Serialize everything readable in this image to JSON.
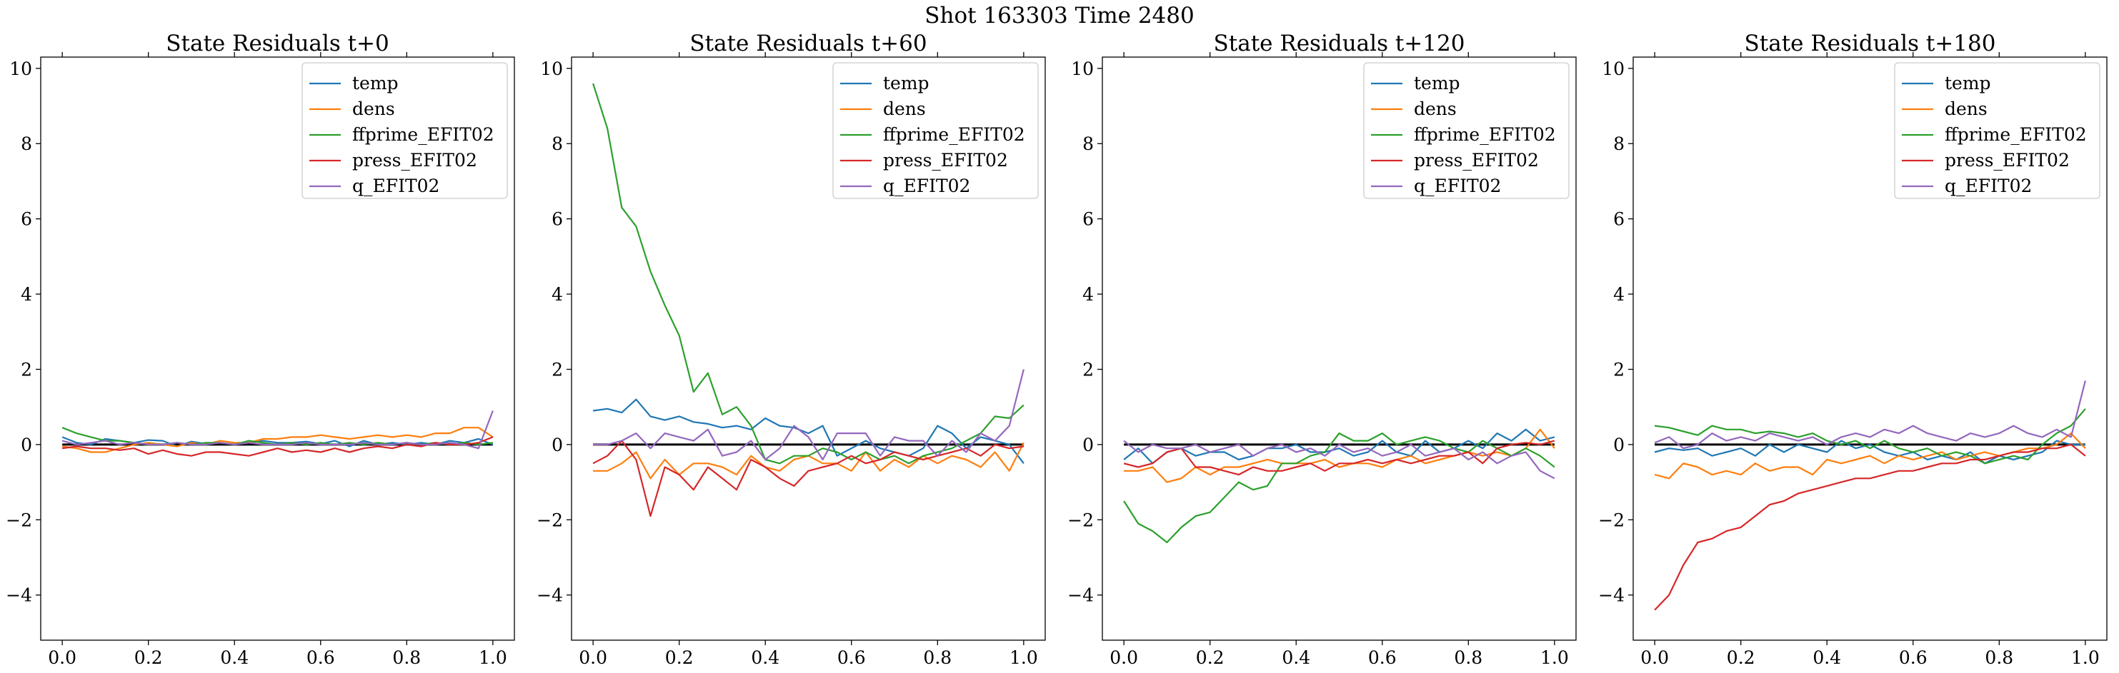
{
  "suptitle": "Shot 163303   Time 2480",
  "colors": {
    "temp": "#1f77b4",
    "dens": "#ff7f0e",
    "ffprime_EFIT02": "#2ca02c",
    "press_EFIT02": "#d62728",
    "q_EFIT02": "#9467bd",
    "zero_line": "#000000"
  },
  "chart_data": [
    {
      "type": "line",
      "title": "State Residuals t+0",
      "xlim": [
        -0.05,
        1.05
      ],
      "ylim": [
        -5.2,
        10.3
      ],
      "xticks": [
        0.0,
        0.2,
        0.4,
        0.6,
        0.8,
        1.0
      ],
      "xtick_labels": [
        "0.0",
        "0.2",
        "0.4",
        "0.6",
        "0.8",
        "1.0"
      ],
      "yticks": [
        -4,
        -2,
        0,
        2,
        4,
        6,
        8,
        10
      ],
      "ytick_labels": [
        "−4",
        "−2",
        "0",
        "2",
        "4",
        "6",
        "8",
        "10"
      ],
      "legend_position": "top-right",
      "grid": false,
      "x": [
        0.0,
        0.0333,
        0.0667,
        0.1,
        0.1333,
        0.1667,
        0.2,
        0.2333,
        0.2667,
        0.3,
        0.3333,
        0.3667,
        0.4,
        0.4333,
        0.4667,
        0.5,
        0.5333,
        0.5667,
        0.6,
        0.6333,
        0.6667,
        0.7,
        0.7333,
        0.7667,
        0.8,
        0.8333,
        0.8667,
        0.9,
        0.9333,
        0.9667,
        1.0
      ],
      "series": [
        {
          "name": "temp",
          "values": [
            0.2,
            0.05,
            0.0,
            0.15,
            0.1,
            0.05,
            0.12,
            0.1,
            -0.05,
            0.08,
            0.02,
            0.05,
            0.0,
            0.05,
            0.1,
            0.05,
            0.05,
            0.08,
            0.02,
            0.1,
            -0.05,
            0.1,
            0.0,
            0.05,
            0.0,
            0.05,
            0.0,
            0.1,
            0.05,
            0.15,
            0.0
          ]
        },
        {
          "name": "dens",
          "values": [
            -0.05,
            -0.1,
            -0.2,
            -0.2,
            -0.1,
            0.0,
            0.05,
            0.0,
            -0.05,
            0.05,
            0.0,
            0.1,
            0.05,
            0.05,
            0.15,
            0.15,
            0.2,
            0.2,
            0.25,
            0.2,
            0.15,
            0.2,
            0.25,
            0.2,
            0.25,
            0.2,
            0.3,
            0.3,
            0.45,
            0.45,
            0.2
          ]
        },
        {
          "name": "ffprime_EFIT02",
          "values": [
            0.45,
            0.3,
            0.2,
            0.1,
            0.1,
            0.05,
            0.0,
            0.0,
            0.05,
            0.0,
            0.05,
            0.05,
            0.0,
            0.1,
            0.05,
            0.0,
            0.05,
            0.0,
            0.05,
            0.0,
            0.05,
            0.0,
            0.05,
            0.0,
            0.05,
            0.0,
            0.05,
            0.0,
            0.05,
            0.0,
            0.05
          ]
        },
        {
          "name": "press_EFIT02",
          "values": [
            -0.1,
            -0.05,
            -0.1,
            -0.1,
            -0.15,
            -0.1,
            -0.25,
            -0.15,
            -0.25,
            -0.3,
            -0.2,
            -0.2,
            -0.25,
            -0.3,
            -0.2,
            -0.1,
            -0.2,
            -0.15,
            -0.2,
            -0.1,
            -0.2,
            -0.1,
            -0.05,
            -0.1,
            0.0,
            -0.05,
            0.05,
            0.0,
            0.0,
            0.05,
            0.2
          ]
        },
        {
          "name": "q_EFIT02",
          "values": [
            0.1,
            0.0,
            0.05,
            0.1,
            0.0,
            0.05,
            0.0,
            0.0,
            0.05,
            0.0,
            0.0,
            0.05,
            0.0,
            0.05,
            0.0,
            0.0,
            0.0,
            0.05,
            0.0,
            0.0,
            0.0,
            0.05,
            0.0,
            0.0,
            0.05,
            0.0,
            0.0,
            0.05,
            0.0,
            -0.1,
            0.9
          ]
        }
      ]
    },
    {
      "type": "line",
      "title": "State Residuals t+60",
      "xlim": [
        -0.05,
        1.05
      ],
      "ylim": [
        -5.2,
        10.3
      ],
      "xticks": [
        0.0,
        0.2,
        0.4,
        0.6,
        0.8,
        1.0
      ],
      "xtick_labels": [
        "0.0",
        "0.2",
        "0.4",
        "0.6",
        "0.8",
        "1.0"
      ],
      "yticks": [
        -4,
        -2,
        0,
        2,
        4,
        6,
        8,
        10
      ],
      "ytick_labels": [
        "−4",
        "−2",
        "0",
        "2",
        "4",
        "6",
        "8",
        "10"
      ],
      "legend_position": "top-right",
      "grid": false,
      "x": [
        0.0,
        0.0333,
        0.0667,
        0.1,
        0.1333,
        0.1667,
        0.2,
        0.2333,
        0.2667,
        0.3,
        0.3333,
        0.3667,
        0.4,
        0.4333,
        0.4667,
        0.5,
        0.5333,
        0.5667,
        0.6,
        0.6333,
        0.6667,
        0.7,
        0.7333,
        0.7667,
        0.8,
        0.8333,
        0.8667,
        0.9,
        0.9333,
        0.9667,
        1.0
      ],
      "series": [
        {
          "name": "temp",
          "values": [
            0.9,
            0.95,
            0.85,
            1.2,
            0.75,
            0.65,
            0.75,
            0.6,
            0.55,
            0.45,
            0.5,
            0.4,
            0.7,
            0.5,
            0.45,
            0.3,
            0.5,
            -0.3,
            -0.1,
            0.1,
            -0.1,
            -0.2,
            -0.3,
            -0.1,
            0.5,
            0.3,
            -0.1,
            0.2,
            0.1,
            0.0,
            -0.5
          ]
        },
        {
          "name": "dens",
          "values": [
            -0.7,
            -0.7,
            -0.5,
            -0.2,
            -0.9,
            -0.4,
            -0.8,
            -0.5,
            -0.5,
            -0.6,
            -0.8,
            -0.3,
            -0.6,
            -0.7,
            -0.4,
            -0.3,
            -0.5,
            -0.5,
            -0.7,
            -0.2,
            -0.7,
            -0.4,
            -0.6,
            -0.3,
            -0.5,
            -0.3,
            -0.4,
            -0.6,
            -0.2,
            -0.7,
            0.05
          ]
        },
        {
          "name": "ffprime_EFIT02",
          "values": [
            9.6,
            8.4,
            6.3,
            5.8,
            4.6,
            3.7,
            2.9,
            1.4,
            1.9,
            0.8,
            1.0,
            0.5,
            -0.4,
            -0.5,
            -0.3,
            -0.3,
            -0.1,
            -0.2,
            -0.4,
            -0.2,
            -0.4,
            -0.3,
            -0.5,
            -0.3,
            -0.2,
            -0.1,
            0.1,
            0.3,
            0.75,
            0.7,
            1.05
          ]
        },
        {
          "name": "press_EFIT02",
          "values": [
            -0.5,
            -0.3,
            0.1,
            -0.4,
            -1.9,
            -0.6,
            -0.8,
            -1.2,
            -0.6,
            -0.9,
            -1.2,
            -0.4,
            -0.6,
            -0.9,
            -1.1,
            -0.7,
            -0.6,
            -0.5,
            -0.3,
            -0.5,
            -0.4,
            -0.2,
            -0.3,
            -0.4,
            -0.3,
            -0.2,
            -0.1,
            -0.3,
            0.0,
            -0.1,
            -0.05
          ]
        },
        {
          "name": "q_EFIT02",
          "values": [
            0.0,
            0.0,
            0.1,
            0.3,
            -0.1,
            0.3,
            0.2,
            0.1,
            0.4,
            -0.3,
            -0.2,
            0.1,
            -0.4,
            -0.1,
            0.5,
            0.2,
            -0.4,
            0.3,
            0.3,
            0.3,
            -0.3,
            0.2,
            0.1,
            0.1,
            -0.3,
            0.1,
            -0.2,
            0.3,
            0.1,
            0.5,
            2.0
          ]
        }
      ]
    },
    {
      "type": "line",
      "title": "State Residuals t+120",
      "xlim": [
        -0.05,
        1.05
      ],
      "ylim": [
        -5.2,
        10.3
      ],
      "xticks": [
        0.0,
        0.2,
        0.4,
        0.6,
        0.8,
        1.0
      ],
      "xtick_labels": [
        "0.0",
        "0.2",
        "0.4",
        "0.6",
        "0.8",
        "1.0"
      ],
      "yticks": [
        -4,
        -2,
        0,
        2,
        4,
        6,
        8,
        10
      ],
      "ytick_labels": [
        "−4",
        "−2",
        "0",
        "2",
        "4",
        "6",
        "8",
        "10"
      ],
      "legend_position": "top-right",
      "grid": false,
      "x": [
        0.0,
        0.0333,
        0.0667,
        0.1,
        0.1333,
        0.1667,
        0.2,
        0.2333,
        0.2667,
        0.3,
        0.3333,
        0.3667,
        0.4,
        0.4333,
        0.4667,
        0.5,
        0.5333,
        0.5667,
        0.6,
        0.6333,
        0.6667,
        0.7,
        0.7333,
        0.7667,
        0.8,
        0.8333,
        0.8667,
        0.9,
        0.9333,
        0.9667,
        1.0
      ],
      "series": [
        {
          "name": "temp",
          "values": [
            -0.4,
            -0.1,
            -0.5,
            -0.2,
            -0.1,
            -0.3,
            -0.2,
            -0.2,
            -0.4,
            -0.3,
            -0.1,
            -0.1,
            0.0,
            -0.2,
            -0.2,
            -0.1,
            -0.3,
            -0.2,
            0.1,
            -0.2,
            -0.3,
            0.1,
            -0.2,
            -0.1,
            0.1,
            -0.1,
            0.3,
            0.1,
            0.4,
            0.1,
            0.2
          ]
        },
        {
          "name": "dens",
          "values": [
            -0.7,
            -0.7,
            -0.6,
            -1.0,
            -0.9,
            -0.6,
            -0.8,
            -0.6,
            -0.6,
            -0.5,
            -0.4,
            -0.5,
            -0.5,
            -0.5,
            -0.4,
            -0.6,
            -0.5,
            -0.5,
            -0.6,
            -0.4,
            -0.3,
            -0.5,
            -0.4,
            -0.3,
            -0.2,
            -0.3,
            -0.2,
            -0.3,
            -0.1,
            0.4,
            -0.1
          ]
        },
        {
          "name": "ffprime_EFIT02",
          "values": [
            -1.5,
            -2.1,
            -2.3,
            -2.6,
            -2.2,
            -1.9,
            -1.8,
            -1.4,
            -1.0,
            -1.2,
            -1.1,
            -0.5,
            -0.5,
            -0.3,
            -0.2,
            0.3,
            0.1,
            0.1,
            0.3,
            0.0,
            0.1,
            0.2,
            0.1,
            -0.1,
            -0.2,
            0.1,
            -0.1,
            -0.3,
            -0.1,
            -0.3,
            -0.6
          ]
        },
        {
          "name": "press_EFIT02",
          "values": [
            -0.5,
            -0.6,
            -0.5,
            -0.2,
            -0.1,
            -0.6,
            -0.6,
            -0.7,
            -0.8,
            -0.6,
            -0.7,
            -0.7,
            -0.6,
            -0.5,
            -0.7,
            -0.5,
            -0.5,
            -0.4,
            -0.5,
            -0.4,
            -0.5,
            -0.4,
            -0.3,
            -0.3,
            -0.2,
            -0.5,
            -0.1,
            0.0,
            0.05,
            0.0,
            0.1
          ]
        },
        {
          "name": "q_EFIT02",
          "values": [
            0.1,
            -0.2,
            0.0,
            -0.1,
            -0.1,
            0.0,
            -0.2,
            -0.1,
            0.0,
            -0.3,
            -0.1,
            0.0,
            -0.2,
            -0.1,
            -0.3,
            0.0,
            -0.2,
            -0.1,
            -0.3,
            -0.2,
            0.0,
            -0.3,
            -0.2,
            -0.1,
            -0.4,
            -0.2,
            -0.5,
            -0.3,
            -0.2,
            -0.7,
            -0.9
          ]
        }
      ]
    },
    {
      "type": "line",
      "title": "State Residuals t+180",
      "xlim": [
        -0.05,
        1.05
      ],
      "ylim": [
        -5.2,
        10.3
      ],
      "xticks": [
        0.0,
        0.2,
        0.4,
        0.6,
        0.8,
        1.0
      ],
      "xtick_labels": [
        "0.0",
        "0.2",
        "0.4",
        "0.6",
        "0.8",
        "1.0"
      ],
      "yticks": [
        -4,
        -2,
        0,
        2,
        4,
        6,
        8,
        10
      ],
      "ytick_labels": [
        "−4",
        "−2",
        "0",
        "2",
        "4",
        "6",
        "8",
        "10"
      ],
      "legend_position": "top-right",
      "grid": false,
      "x": [
        0.0,
        0.0333,
        0.0667,
        0.1,
        0.1333,
        0.1667,
        0.2,
        0.2333,
        0.2667,
        0.3,
        0.3333,
        0.3667,
        0.4,
        0.4333,
        0.4667,
        0.5,
        0.5333,
        0.5667,
        0.6,
        0.6333,
        0.6667,
        0.7,
        0.7333,
        0.7667,
        0.8,
        0.8333,
        0.8667,
        0.9,
        0.9333,
        0.9667,
        1.0
      ],
      "series": [
        {
          "name": "temp",
          "values": [
            -0.2,
            -0.1,
            -0.15,
            -0.1,
            -0.3,
            -0.2,
            -0.1,
            -0.3,
            0.0,
            -0.2,
            0.0,
            -0.1,
            -0.2,
            0.1,
            -0.1,
            0.0,
            -0.2,
            -0.3,
            -0.2,
            -0.4,
            -0.3,
            -0.4,
            -0.2,
            -0.5,
            -0.3,
            -0.4,
            -0.3,
            -0.2,
            0.1,
            0.0,
            0.0
          ]
        },
        {
          "name": "dens",
          "values": [
            -0.8,
            -0.9,
            -0.5,
            -0.6,
            -0.8,
            -0.7,
            -0.8,
            -0.5,
            -0.7,
            -0.6,
            -0.6,
            -0.8,
            -0.4,
            -0.5,
            -0.4,
            -0.3,
            -0.5,
            -0.3,
            -0.4,
            -0.3,
            -0.2,
            -0.4,
            -0.3,
            -0.2,
            -0.3,
            -0.2,
            -0.1,
            -0.1,
            0.0,
            0.3,
            -0.1
          ]
        },
        {
          "name": "ffprime_EFIT02",
          "values": [
            0.5,
            0.45,
            0.35,
            0.25,
            0.5,
            0.4,
            0.4,
            0.3,
            0.35,
            0.3,
            0.2,
            0.3,
            0.1,
            0.0,
            0.1,
            -0.1,
            0.1,
            -0.1,
            -0.2,
            -0.1,
            -0.3,
            -0.2,
            -0.3,
            -0.5,
            -0.4,
            -0.3,
            -0.4,
            0.0,
            0.3,
            0.5,
            0.95
          ]
        },
        {
          "name": "press_EFIT02",
          "values": [
            -4.4,
            -4.0,
            -3.2,
            -2.6,
            -2.5,
            -2.3,
            -2.2,
            -1.9,
            -1.6,
            -1.5,
            -1.3,
            -1.2,
            -1.1,
            -1.0,
            -0.9,
            -0.9,
            -0.8,
            -0.7,
            -0.7,
            -0.6,
            -0.5,
            -0.5,
            -0.4,
            -0.4,
            -0.3,
            -0.2,
            -0.2,
            -0.1,
            -0.1,
            0.0,
            -0.3
          ]
        },
        {
          "name": "q_EFIT02",
          "values": [
            0.05,
            0.2,
            -0.1,
            0.0,
            0.3,
            0.1,
            0.2,
            0.1,
            0.3,
            0.2,
            0.1,
            0.2,
            0.0,
            0.2,
            0.3,
            0.2,
            0.4,
            0.3,
            0.5,
            0.3,
            0.2,
            0.1,
            0.3,
            0.2,
            0.3,
            0.5,
            0.3,
            0.2,
            0.4,
            0.2,
            1.7
          ]
        }
      ]
    }
  ]
}
